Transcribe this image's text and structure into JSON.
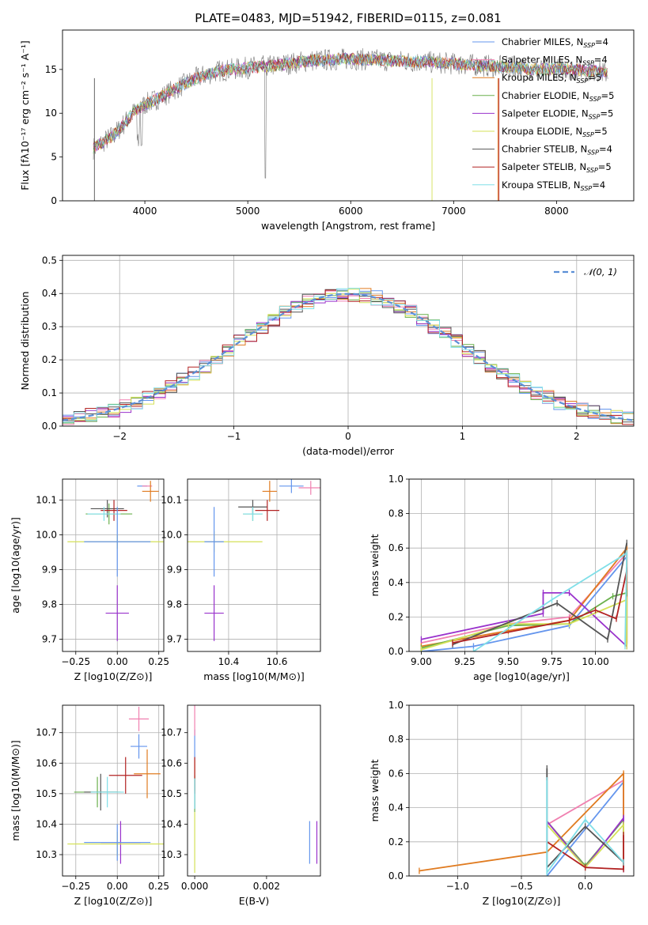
{
  "title": "PLATE=0483, MJD=51942, FIBERID=0115, z=0.081",
  "colors": {
    "chabrier_miles": "#6495ed",
    "salpeter_miles": "#f080b0",
    "kroupa_miles": "#e07b20",
    "chabrier_elodie": "#6ab04c",
    "salpeter_elodie": "#9932cc",
    "kroupa_elodie": "#d4e157",
    "chabrier_stelib": "#555555",
    "salpeter_stelib": "#b22222",
    "kroupa_stelib": "#80dfe8",
    "normal_curve": "#5b8fd6"
  },
  "chart_data": [
    {
      "type": "line",
      "xlabel": "wavelength [Angstrom, rest frame]",
      "ylabel": "Flux [fλ10⁻¹⁷ erg cm⁻² s⁻¹ A⁻¹]",
      "xlim": [
        3200,
        8750
      ],
      "ylim": [
        0,
        19.5
      ],
      "xticks": [
        4000,
        5000,
        6000,
        7000,
        8000
      ],
      "yticks": [
        0,
        5,
        10,
        15
      ],
      "grid": false,
      "legend": "right",
      "continuum": {
        "x": [
          3500,
          3700,
          3900,
          4000,
          4150,
          4300,
          4500,
          4700,
          5000,
          5300,
          5600,
          6000,
          6400,
          6800,
          7200,
          7500,
          7800,
          8100,
          8400,
          8500
        ],
        "y": [
          6.0,
          7.5,
          10.2,
          11.0,
          11.8,
          12.8,
          14.0,
          14.8,
          15.2,
          15.5,
          16.0,
          16.2,
          16.0,
          15.8,
          15.5,
          15.3,
          15.0,
          15.1,
          14.8,
          14.5
        ]
      },
      "series": [
        {
          "name": "Chabrier MILES, N_SSP=4",
          "color": "#6495ed"
        },
        {
          "name": "Salpeter MILES, N_SSP=4",
          "color": "#f080b0"
        },
        {
          "name": "Kroupa MILES, N_SSP=5",
          "color": "#e07b20"
        },
        {
          "name": "Chabrier ELODIE, N_SSP=5",
          "color": "#6ab04c"
        },
        {
          "name": "Salpeter ELODIE, N_SSP=5",
          "color": "#9932cc"
        },
        {
          "name": "Kroupa ELODIE, N_SSP=5",
          "color": "#d4e157"
        },
        {
          "name": "Chabrier STELIB, N_SSP=4",
          "color": "#555555"
        },
        {
          "name": "Salpeter STELIB, N_SSP=5",
          "color": "#b22222"
        },
        {
          "name": "Kroupa STELIB, N_SSP=4",
          "color": "#80dfe8"
        }
      ]
    },
    {
      "type": "histogram",
      "xlabel": "(data-model)/error",
      "ylabel": "Normed distribution",
      "xlim": [
        -2.5,
        2.5
      ],
      "ylim": [
        0,
        0.515
      ],
      "xticks": [
        -2,
        -1,
        0,
        1,
        2
      ],
      "yticks": [
        0.0,
        0.1,
        0.2,
        0.3,
        0.4,
        0.5
      ],
      "grid": true,
      "legend": "top-right",
      "reference_curve": {
        "label": "𝒩(0, 1)",
        "mean": 0,
        "sigma": 1
      },
      "bin_width": 0.1,
      "bin_start": -2.5,
      "series_note": "one step histogram per model, same colors as spectrum panel"
    },
    {
      "type": "scatter",
      "xlabel": "Z [log10(Z/Z⊙)]",
      "ylabel": "age  [log10(age/yr)]",
      "xlim": [
        -0.33,
        0.28
      ],
      "ylim": [
        9.665,
        10.16
      ],
      "xticks": [
        -0.25,
        0.0,
        0.25
      ],
      "yticks": [
        9.7,
        9.8,
        9.9,
        10.0,
        10.1
      ],
      "grid": true,
      "points": [
        {
          "x": 0.15,
          "y": 10.14,
          "xerr": 0.03,
          "yerr": 0.0
        },
        {
          "x": 0.18,
          "y": 10.14,
          "xerr": 0.03,
          "yerr": 0.0
        },
        {
          "x": 0.2,
          "y": 10.125,
          "xerr": 0.05,
          "yerr": 0.03
        },
        {
          "x": -0.05,
          "y": 10.06,
          "xerr": 0.14,
          "yerr": 0.03
        },
        {
          "x": 0.0,
          "y": 9.775,
          "xerr": 0.07,
          "yerr": 0.08
        },
        {
          "x": 0.0,
          "y": 9.98,
          "xerr": 0.3,
          "yerr": 0.02
        },
        {
          "x": -0.06,
          "y": 10.075,
          "xerr": 0.1,
          "yerr": 0.025
        },
        {
          "x": -0.02,
          "y": 10.07,
          "xerr": 0.08,
          "yerr": 0.03
        },
        {
          "x": -0.08,
          "y": 10.06,
          "xerr": 0.1,
          "yerr": 0.02
        },
        {
          "x": 0.0,
          "y": 9.98,
          "xerr": 0.2,
          "yerr": 0.1
        }
      ]
    },
    {
      "type": "scatter",
      "xlabel": "mass [log10(M/M⊙)]",
      "ylabel": "",
      "xlim": [
        10.23,
        10.78
      ],
      "ylim": [
        9.665,
        10.16
      ],
      "xticks": [
        10.4,
        10.6
      ],
      "yticks": [
        9.7,
        9.8,
        9.9,
        10.0,
        10.1
      ],
      "grid": true,
      "points": [
        {
          "x": 10.66,
          "y": 10.14,
          "xerr": 0.05,
          "yerr": 0.02
        },
        {
          "x": 10.74,
          "y": 10.135,
          "xerr": 0.05,
          "yerr": 0.02
        },
        {
          "x": 10.57,
          "y": 10.125,
          "xerr": 0.03,
          "yerr": 0.03
        },
        {
          "x": 10.5,
          "y": 10.06,
          "xerr": 0.04,
          "yerr": 0.02
        },
        {
          "x": 10.34,
          "y": 9.775,
          "xerr": 0.04,
          "yerr": 0.08
        },
        {
          "x": 10.34,
          "y": 9.98,
          "xerr": 0.2,
          "yerr": 0.03
        },
        {
          "x": 10.5,
          "y": 10.08,
          "xerr": 0.06,
          "yerr": 0.02
        },
        {
          "x": 10.56,
          "y": 10.07,
          "xerr": 0.05,
          "yerr": 0.03
        },
        {
          "x": 10.5,
          "y": 10.06,
          "xerr": 0.04,
          "yerr": 0.02
        },
        {
          "x": 10.34,
          "y": 9.98,
          "xerr": 0.04,
          "yerr": 0.1
        }
      ]
    },
    {
      "type": "line",
      "xlabel": "age  [log10(age/yr)]",
      "ylabel": "mass weight",
      "xlim": [
        8.93,
        10.22
      ],
      "ylim": [
        0,
        1.0
      ],
      "xticks": [
        9.0,
        9.25,
        9.5,
        9.75,
        10.0
      ],
      "yticks": [
        0.0,
        0.2,
        0.4,
        0.6,
        0.8,
        1.0
      ],
      "grid": true
    },
    {
      "type": "scatter",
      "xlabel": "Z [log10(Z/Z⊙)]",
      "ylabel": "mass [log10(M/M⊙)]",
      "xlim": [
        -0.33,
        0.28
      ],
      "ylim": [
        10.23,
        10.79
      ],
      "xticks": [
        -0.25,
        0.0,
        0.25
      ],
      "yticks": [
        10.3,
        10.4,
        10.5,
        10.6,
        10.7
      ],
      "grid": true
    },
    {
      "type": "scatter",
      "xlabel": "E(B-V)",
      "ylabel": "",
      "xlim": [
        -0.0002,
        0.0035
      ],
      "ylim": [
        10.23,
        10.79
      ],
      "xticks": [
        0.0,
        0.002
      ],
      "yticks": [
        10.3,
        10.4,
        10.5,
        10.6,
        10.7
      ],
      "grid": false
    },
    {
      "type": "line",
      "xlabel": "Z [log10(Z/Z⊙)]",
      "ylabel": "mass weight",
      "xlim": [
        -1.38,
        0.38
      ],
      "ylim": [
        0,
        1.0
      ],
      "xticks": [
        -1.0,
        -0.5,
        0.0
      ],
      "yticks": [
        0.0,
        0.2,
        0.4,
        0.6,
        0.8,
        1.0
      ],
      "grid": true
    }
  ]
}
